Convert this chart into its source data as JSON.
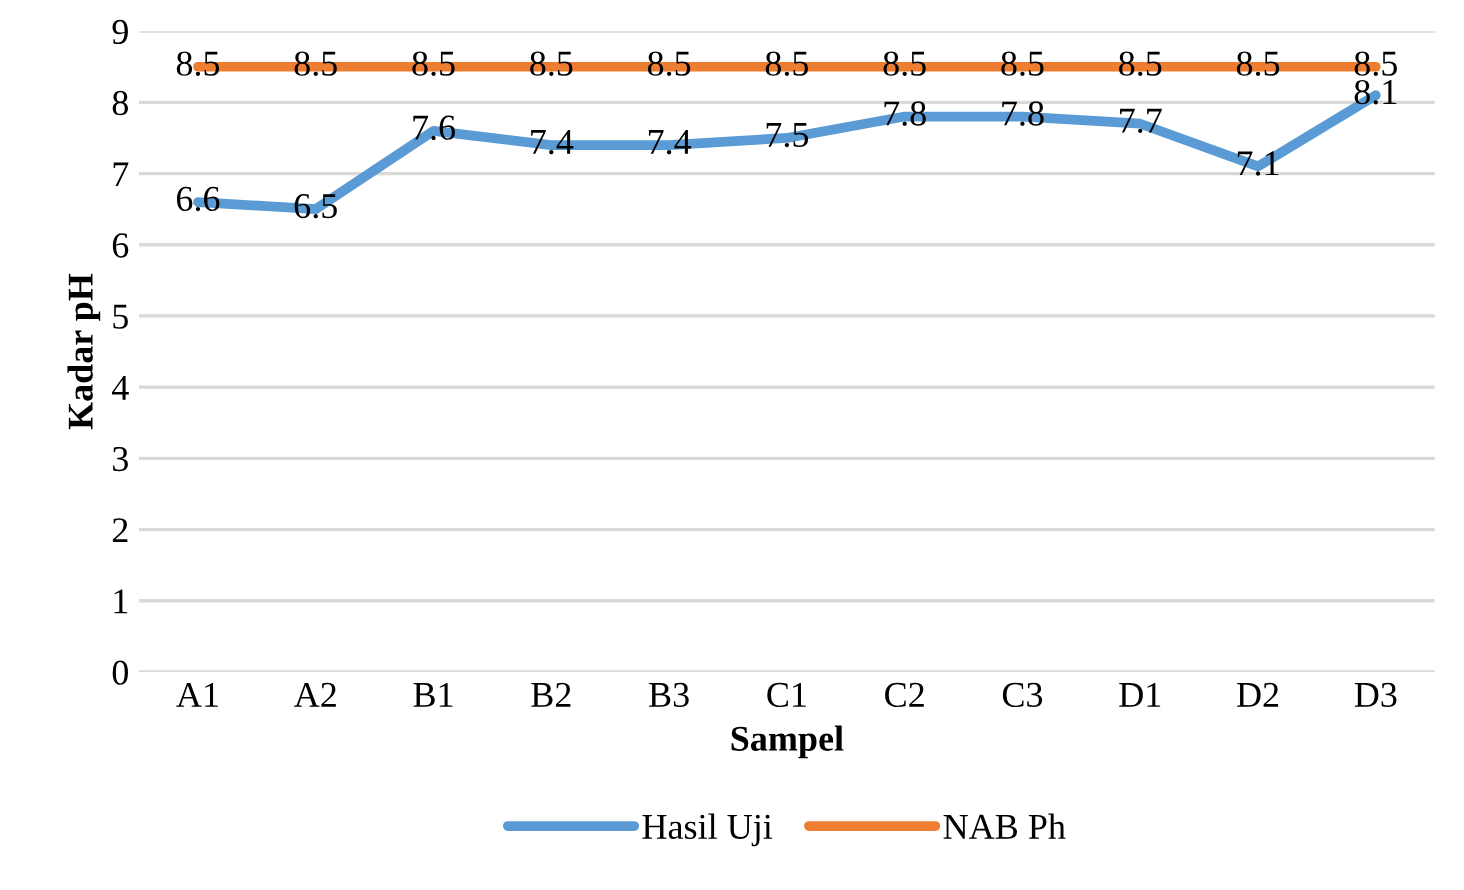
{
  "chart_data": {
    "type": "line",
    "xlabel": "Sampel",
    "ylabel": "Kadar pH",
    "categories": [
      "A1",
      "A2",
      "B1",
      "B2",
      "B3",
      "C1",
      "C2",
      "C3",
      "D1",
      "D2",
      "D3"
    ],
    "series": [
      {
        "name": "Hasil Uji",
        "color": "#5b9bd5",
        "values": [
          6.6,
          6.5,
          7.6,
          7.4,
          7.4,
          7.5,
          7.8,
          7.8,
          7.7,
          7.1,
          8.1
        ]
      },
      {
        "name": "NAB Ph",
        "color": "#ed7d31",
        "values": [
          8.5,
          8.5,
          8.5,
          8.5,
          8.5,
          8.5,
          8.5,
          8.5,
          8.5,
          8.5,
          8.5
        ]
      }
    ],
    "ylim": [
      0,
      9
    ],
    "yticks": [
      0,
      1,
      2,
      3,
      4,
      5,
      6,
      7,
      8,
      9
    ],
    "grid": "y",
    "legend": "bottom",
    "data_labels": true,
    "marker": "none",
    "line_style": "solid"
  }
}
